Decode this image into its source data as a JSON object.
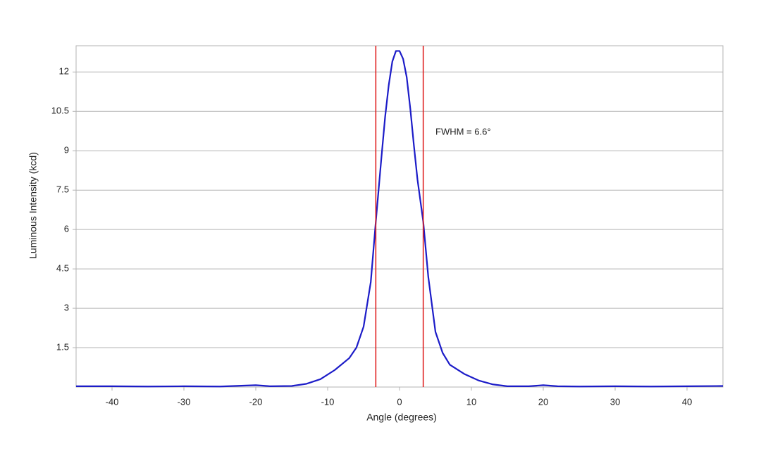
{
  "chart_data": {
    "type": "line",
    "x_label": "Angle (degrees)",
    "y_label": "Luminous Intensity (kcd)",
    "annotation": "FWHM = 6.6°",
    "annotation_pos": [
      5,
      9.7
    ],
    "x": [
      -45,
      -40,
      -35,
      -30,
      -25,
      -20,
      -18,
      -15,
      -13,
      -11,
      -9,
      -7,
      -6,
      -5,
      -4,
      -3.3,
      -2.5,
      -2,
      -1.5,
      -1,
      -0.5,
      0,
      0.5,
      1,
      1.5,
      2,
      2.5,
      3.3,
      4,
      5,
      6,
      7,
      9,
      11,
      13,
      15,
      18,
      20,
      22,
      25,
      30,
      35,
      40,
      45
    ],
    "values": [
      0.03,
      0.03,
      0.02,
      0.03,
      0.02,
      0.07,
      0.03,
      0.04,
      0.12,
      0.3,
      0.65,
      1.1,
      1.5,
      2.3,
      4.0,
      6.3,
      8.8,
      10.3,
      11.5,
      12.4,
      12.8,
      12.8,
      12.5,
      11.8,
      10.6,
      9.2,
      7.9,
      6.3,
      4.2,
      2.1,
      1.3,
      0.85,
      0.5,
      0.25,
      0.1,
      0.03,
      0.03,
      0.07,
      0.03,
      0.02,
      0.03,
      0.02,
      0.03,
      0.04
    ],
    "color": "#1c1cc8",
    "vlines": [
      -3.3,
      3.3
    ],
    "vline_color": "#e02020",
    "xlim": [
      -45,
      45
    ],
    "xticks": [
      -40,
      -30,
      -20,
      -10,
      0,
      10,
      20,
      30,
      40
    ],
    "ylim": [
      0,
      13
    ],
    "yticks": [
      1.5,
      3,
      4.5,
      6,
      7.5,
      9,
      10.5,
      12
    ],
    "grid": true
  }
}
